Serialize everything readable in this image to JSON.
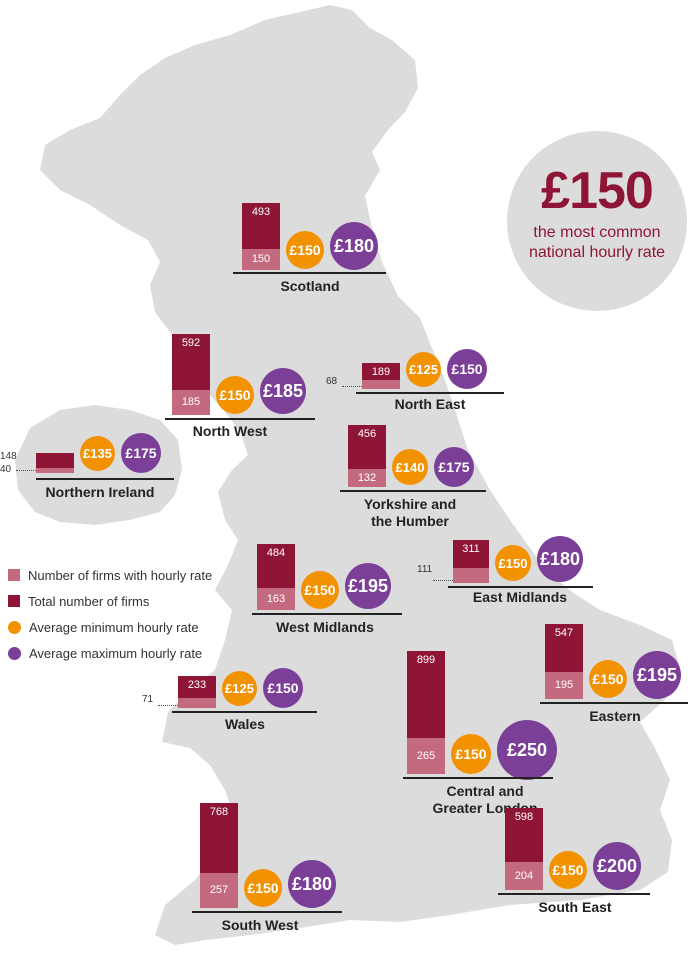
{
  "headline": {
    "value": "£150",
    "caption": "the most common national hourly rate"
  },
  "legend": [
    {
      "label": "Number of firms with hourly rate",
      "color": "#c46a7e",
      "shape": "square"
    },
    {
      "label": "Total number of firms",
      "color": "#8e1535",
      "shape": "square"
    },
    {
      "label": "Average minimum hourly rate",
      "color": "#f39200",
      "shape": "circle"
    },
    {
      "label": "Average maximum hourly rate",
      "color": "#7b3f98",
      "shape": "circle"
    }
  ],
  "regions": [
    {
      "name": "Scotland",
      "total": 493,
      "hourly": 150,
      "min_rate": "£150",
      "max_rate": "£180"
    },
    {
      "name": "North West",
      "total": 592,
      "hourly": 185,
      "min_rate": "£150",
      "max_rate": "£185"
    },
    {
      "name": "North East",
      "total": 189,
      "hourly": 68,
      "min_rate": "£125",
      "max_rate": "£150"
    },
    {
      "name": "Northern Ireland",
      "total": 148,
      "hourly": 40,
      "min_rate": "£135",
      "max_rate": "£175"
    },
    {
      "name": "Yorkshire and\nthe Humber",
      "total": 456,
      "hourly": 132,
      "min_rate": "£140",
      "max_rate": "£175"
    },
    {
      "name": "East Midlands",
      "total": 311,
      "hourly": 111,
      "min_rate": "£150",
      "max_rate": "£180"
    },
    {
      "name": "West Midlands",
      "total": 484,
      "hourly": 163,
      "min_rate": "£150",
      "max_rate": "£195"
    },
    {
      "name": "Eastern",
      "total": 547,
      "hourly": 195,
      "min_rate": "£150",
      "max_rate": "£195"
    },
    {
      "name": "Wales",
      "total": 233,
      "hourly": 71,
      "min_rate": "£125",
      "max_rate": "£150"
    },
    {
      "name": "Central and\nGreater London",
      "total": 899,
      "hourly": 265,
      "min_rate": "£150",
      "max_rate": "£250"
    },
    {
      "name": "South West",
      "total": 768,
      "hourly": 257,
      "min_rate": "£150",
      "max_rate": "£180"
    },
    {
      "name": "South East",
      "total": 598,
      "hourly": 204,
      "min_rate": "£150",
      "max_rate": "£200"
    }
  ]
}
